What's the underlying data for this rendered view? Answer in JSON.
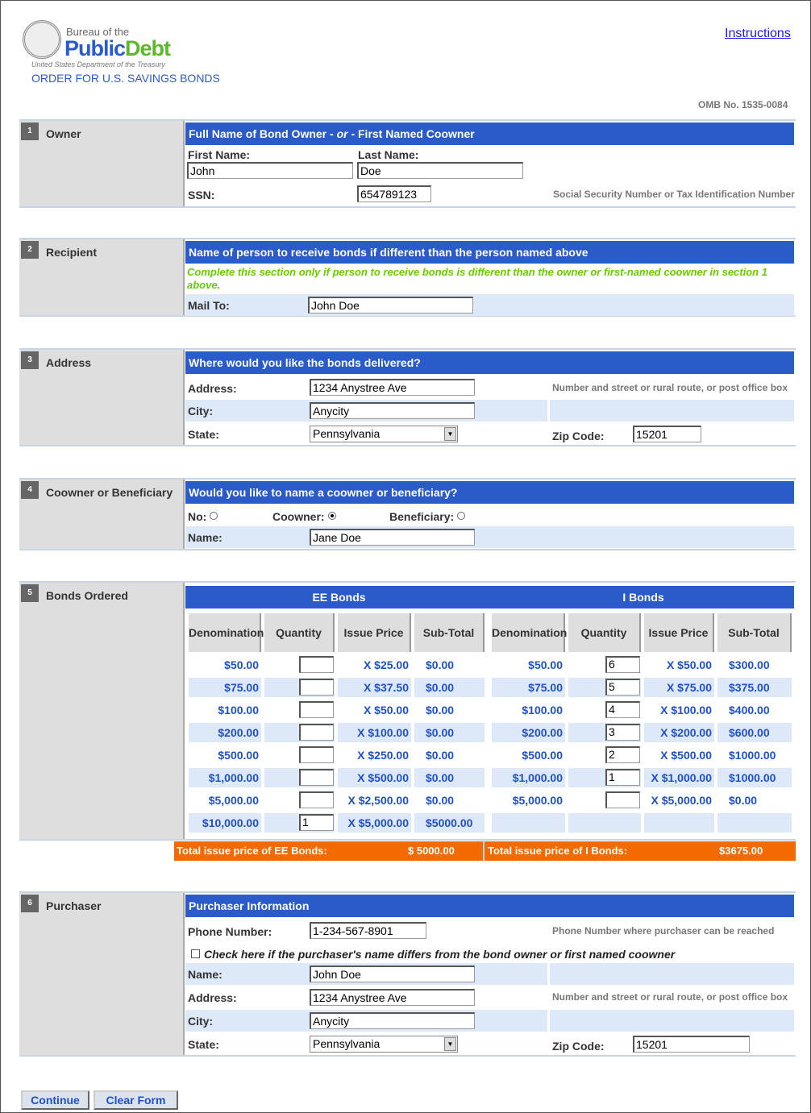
{
  "header": {
    "logo_line1": "Bureau of the",
    "logo_public": "Public",
    "logo_debt": "Debt",
    "logo_sub": "United States Department of the Treasury",
    "order_title": "ORDER FOR U.S. SAVINGS BONDS",
    "instructions_link": "Instructions",
    "omb": "OMB No. 1535-0084"
  },
  "colors": {
    "header_blue": "#2b5bc8",
    "text_blue": "#2050c8",
    "total_orange": "#f26a00",
    "note_green": "#66cc00"
  },
  "owner": {
    "num": "1",
    "label": "Owner",
    "header_pre": "Full Name of Bond Owner - ",
    "header_or": "or",
    "header_post": " - First Named Coowner",
    "first_label": "First Name:",
    "first_value": "John",
    "last_label": "Last Name:",
    "last_value": "Doe",
    "ssn_label": "SSN:",
    "ssn_value": "654789123",
    "ssn_hint": "Social Security Number or Tax Identification Number"
  },
  "recipient": {
    "num": "2",
    "label": "Recipient",
    "header": "Name of person to receive bonds if different than the person named above",
    "note": "Complete this section only if person to receive bonds is different than the owner or first-named coowner in section 1 above.",
    "mail_label": "Mail To:",
    "mail_value": "John Doe"
  },
  "address": {
    "num": "3",
    "label": "Address",
    "header": "Where would you like the bonds delivered?",
    "addr_label": "Address:",
    "addr_value": "1234 Anystree Ave",
    "addr_hint": "Number and street or rural route, or post office box",
    "city_label": "City:",
    "city_value": "Anycity",
    "state_label": "State:",
    "state_value": "Pennsylvania",
    "zip_label": "Zip Code:",
    "zip_value": "15201"
  },
  "coowner": {
    "num": "4",
    "label": "Coowner or Beneficiary",
    "header": "Would you like to name a coowner or beneficiary?",
    "no_label": "No:",
    "coowner_label": "Coowner:",
    "beneficiary_label": "Beneficiary:",
    "selected": "coowner",
    "name_label": "Name:",
    "name_value": "Jane Doe"
  },
  "bonds": {
    "num": "5",
    "label": "Bonds Ordered",
    "ee": {
      "title": "EE Bonds",
      "columns": [
        "Denomination",
        "Quantity",
        "Issue Price",
        "Sub-Total"
      ],
      "rows": [
        [
          "$50.00",
          "",
          "X $25.00",
          "$0.00"
        ],
        [
          "$75.00",
          "",
          "X $37.50",
          "$0.00"
        ],
        [
          "$100.00",
          "",
          "X $50.00",
          "$0.00"
        ],
        [
          "$200.00",
          "",
          "X $100.00",
          "$0.00"
        ],
        [
          "$500.00",
          "",
          "X $250.00",
          "$0.00"
        ],
        [
          "$1,000.00",
          "",
          "X $500.00",
          "$0.00"
        ],
        [
          "$5,000.00",
          "",
          "X $2,500.00",
          "$0.00"
        ],
        [
          "$10,000.00",
          "1",
          "X $5,000.00",
          "$5000.00"
        ]
      ],
      "total_label": "Total issue price of EE Bonds:",
      "total_value": "$ 5000.00"
    },
    "i": {
      "title": "I Bonds",
      "columns": [
        "Denomination",
        "Quantity",
        "Issue Price",
        "Sub-Total"
      ],
      "rows": [
        [
          "$50.00",
          "6",
          "X $50.00",
          "$300.00"
        ],
        [
          "$75.00",
          "5",
          "X $75.00",
          "$375.00"
        ],
        [
          "$100.00",
          "4",
          "X $100.00",
          "$400.00"
        ],
        [
          "$200.00",
          "3",
          "X $200.00",
          "$600.00"
        ],
        [
          "$500.00",
          "2",
          "X $500.00",
          "$1000.00"
        ],
        [
          "$1,000.00",
          "1",
          "X $1,000.00",
          "$1000.00"
        ],
        [
          "$5,000.00",
          "",
          "X $5,000.00",
          "$0.00"
        ]
      ],
      "total_label": "Total issue price of I Bonds:",
      "total_value": "$3675.00"
    }
  },
  "purchaser": {
    "num": "6",
    "label": "Purchaser",
    "header": "Purchaser Information",
    "phone_label": "Phone Number:",
    "phone_value": "1-234-567-8901",
    "phone_hint": "Phone Number where purchaser can be reached",
    "check_label": "Check here if the purchaser's name differs from the bond owner or first named coowner",
    "name_label": "Name:",
    "name_value": "John Doe",
    "addr_label": "Address:",
    "addr_value": "1234 Anystree Ave",
    "addr_hint": "Number and street or rural route, or post office box",
    "city_label": "City:",
    "city_value": "Anycity",
    "state_label": "State:",
    "state_value": "Pennsylvania",
    "zip_label": "Zip Code:",
    "zip_value": "15201"
  },
  "buttons": {
    "continue": "Continue",
    "clear": "Clear Form"
  }
}
